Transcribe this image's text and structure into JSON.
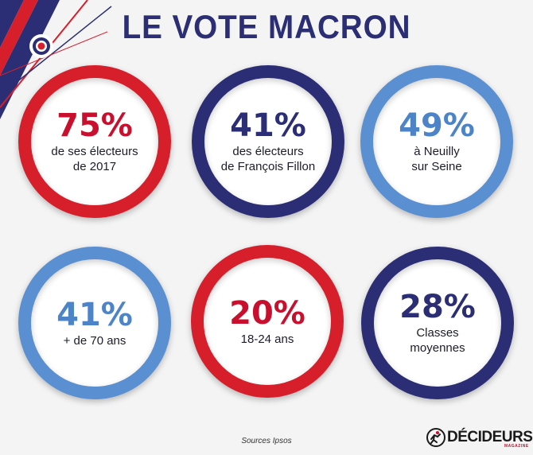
{
  "title": "LE VOTE MACRON",
  "stats": [
    {
      "value": "75%",
      "description": "de ses électeurs\nde 2017",
      "ring_color": "#d71f2b",
      "value_color": "#c8102e"
    },
    {
      "value": "41%",
      "description": "des électeurs\nde François Fillon",
      "ring_color": "#2b2e74",
      "value_color": "#2b2e74"
    },
    {
      "value": "49%",
      "description": "à Neuilly\nsur Seine",
      "ring_color": "#5a8fd1",
      "value_color": "#4d84c8"
    },
    {
      "value": "41%",
      "description": "+ de 70 ans",
      "ring_color": "#5a8fd1",
      "value_color": "#4d84c8"
    },
    {
      "value": "20%",
      "description": "18-24 ans",
      "ring_color": "#d71f2b",
      "value_color": "#c8102e"
    },
    {
      "value": "28%",
      "description": "Classes\nmoyennes",
      "ring_color": "#2b2e74",
      "value_color": "#2b2e74"
    }
  ],
  "sources": "Sources Ipsos",
  "brand": {
    "name": "DÉCIDEURS",
    "sub": "MAGAZINE",
    "icon": "runner-icon"
  }
}
